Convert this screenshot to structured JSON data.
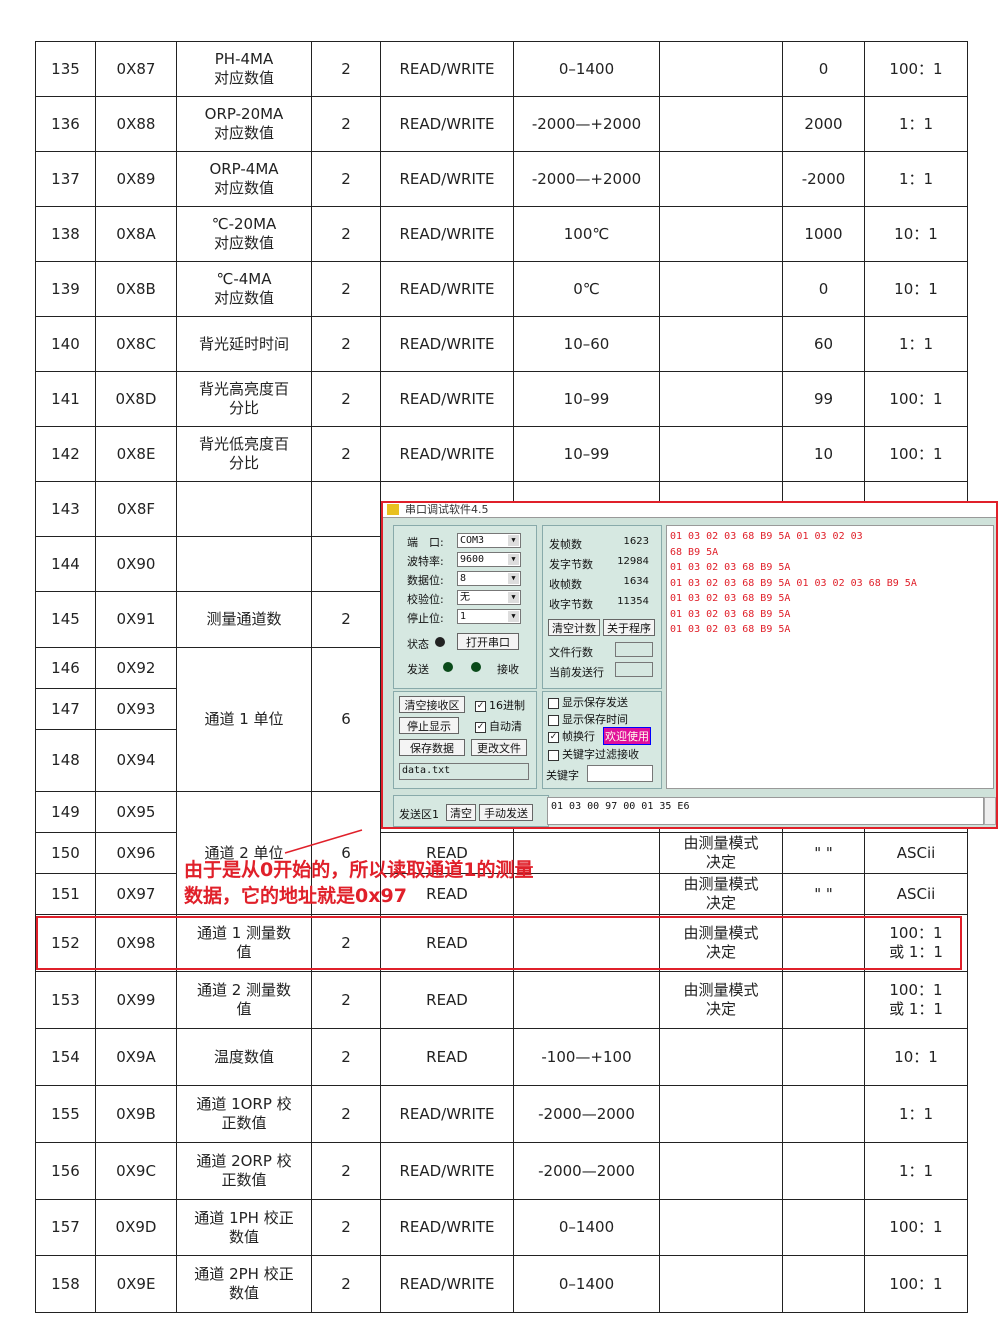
{
  "table": {
    "rows": [
      {
        "no": "135",
        "addr": "0X87",
        "name": "PH-4MA\n对应数值",
        "bytes": "2",
        "rw": "READ/WRITE",
        "range": "0–1400",
        "default": "0",
        "ratio": "100：1"
      },
      {
        "no": "136",
        "addr": "0X88",
        "name": "ORP-20MA\n对应数值",
        "bytes": "2",
        "rw": "READ/WRITE",
        "range": "-2000—+2000",
        "default": "2000",
        "ratio": "1：1"
      },
      {
        "no": "137",
        "addr": "0X89",
        "name": "ORP-4MA\n对应数值",
        "bytes": "2",
        "rw": "READ/WRITE",
        "range": "-2000—+2000",
        "default": "-2000",
        "ratio": "1：1"
      },
      {
        "no": "138",
        "addr": "0X8A",
        "name": "℃-20MA\n对应数值",
        "bytes": "2",
        "rw": "READ/WRITE",
        "range": "100℃",
        "default": "1000",
        "ratio": "10：1"
      },
      {
        "no": "139",
        "addr": "0X8B",
        "name": "℃-4MA\n对应数值",
        "bytes": "2",
        "rw": "READ/WRITE",
        "range": "0℃",
        "default": "0",
        "ratio": "10：1"
      },
      {
        "no": "140",
        "addr": "0X8C",
        "name": "背光延时时间",
        "bytes": "2",
        "rw": "READ/WRITE",
        "range": "10–60",
        "default": "60",
        "ratio": "1：1"
      },
      {
        "no": "141",
        "addr": "0X8D",
        "name": "背光高亮度百\n分比",
        "bytes": "2",
        "rw": "READ/WRITE",
        "range": "10–99",
        "default": "99",
        "ratio": "100：1"
      },
      {
        "no": "142",
        "addr": "0X8E",
        "name": "背光低亮度百\n分比",
        "bytes": "2",
        "rw": "READ/WRITE",
        "range": "10–99",
        "default": "10",
        "ratio": "100：1"
      },
      {
        "no": "143",
        "addr": "0X8F"
      },
      {
        "no": "144",
        "addr": "0X90"
      },
      {
        "no": "145",
        "addr": "0X91",
        "name": "测量通道数",
        "bytes": "2"
      },
      {
        "no": "146",
        "addr": "0X92",
        "name": "通道 1 单位",
        "bytes": "6"
      },
      {
        "no": "147",
        "addr": "0X93"
      },
      {
        "no": "148",
        "addr": "0X94"
      },
      {
        "no": "149",
        "addr": "0X95",
        "name": "通道 2 单位",
        "bytes": "6"
      },
      {
        "no": "150",
        "addr": "0X96",
        "rw": "READ",
        "mode": "由测量模式\n决定",
        "default": "\" \"",
        "ratio": "ASCii"
      },
      {
        "no": "151",
        "addr": "0X97",
        "rw": "READ",
        "mode": "由测量模式\n决定",
        "default": "\" \"",
        "ratio": "ASCii"
      },
      {
        "no": "152",
        "addr": "0X98",
        "name": "通道 1 测量数\n值",
        "bytes": "2",
        "rw": "READ",
        "mode": "由测量模式\n决定",
        "ratio": "100：1\n或 1：1"
      },
      {
        "no": "153",
        "addr": "0X99",
        "name": "通道 2 测量数\n值",
        "bytes": "2",
        "rw": "READ",
        "mode": "由测量模式\n决定",
        "ratio": "100：1\n或 1：1"
      },
      {
        "no": "154",
        "addr": "0X9A",
        "name": "温度数值",
        "bytes": "2",
        "rw": "READ",
        "range": "-100—+100",
        "ratio": "10：1"
      },
      {
        "no": "155",
        "addr": "0X9B",
        "name": "通道 1ORP 校\n正数值",
        "bytes": "2",
        "rw": "READ/WRITE",
        "range": "-2000—2000",
        "ratio": "1：1"
      },
      {
        "no": "156",
        "addr": "0X9C",
        "name": "通道 2ORP 校\n正数值",
        "bytes": "2",
        "rw": "READ/WRITE",
        "range": "-2000—2000",
        "ratio": "1：1"
      },
      {
        "no": "157",
        "addr": "0X9D",
        "name": "通道 1PH 校正\n数值",
        "bytes": "2",
        "rw": "READ/WRITE",
        "range": "0–1400",
        "ratio": "100：1"
      },
      {
        "no": "158",
        "addr": "0X9E",
        "name": "通道 2PH 校正\n数值",
        "bytes": "2",
        "rw": "READ/WRITE",
        "range": "0–1400",
        "ratio": "100：1"
      }
    ]
  },
  "annotation": "由于是从0开始的，所以读取通道1的测量\n数据，它的地址就是0x97",
  "window": {
    "title": "串口调试软件4.5",
    "settings": [
      {
        "label": "端　口:",
        "value": "COM3"
      },
      {
        "label": "波特率:",
        "value": "9600"
      },
      {
        "label": "数据位:",
        "value": "8"
      },
      {
        "label": "校验位:",
        "value": "无"
      },
      {
        "label": "停止位:",
        "value": "1"
      }
    ],
    "status": "状态",
    "open_port": "打开串口",
    "send": "发送",
    "receive": "接收",
    "counters": [
      {
        "label": "发帧数",
        "value": "1623"
      },
      {
        "label": "发字节数",
        "value": "12984"
      },
      {
        "label": "收帧数",
        "value": "1634"
      },
      {
        "label": "收字节数",
        "value": "11354"
      }
    ],
    "clear_count": "清空计数",
    "about": "关于程序",
    "file_lines": "文件行数",
    "current_line": "当前发送行",
    "receive_lines": [
      "01 03 02 03 68 B9 5A 01 03 02 03",
      "68 B9 5A",
      "01 03 02 03 68 B9 5A",
      "01 03 02 03 68 B9 5A 01 03 02 03 68 B9 5A",
      "01 03 02 03 68 B9 5A",
      "01 03 02 03 68 B9 5A",
      "01 03 02 03 68 B9 5A"
    ],
    "clear_receive": "清空接收区",
    "hex": "16进制",
    "stop_display": "停止显示",
    "auto_clear": "自动清",
    "save_data": "保存数据",
    "change_file": "更改文件",
    "file": "data.txt",
    "show_save_send": "显示保存发送",
    "show_save_time": "显示保存时间",
    "frame_newline": "帧换行",
    "welcome": "欢迎使用",
    "keyword_filter": "关键字过滤接收",
    "keyword": "关键字",
    "send_area": "发送区1",
    "clear": "清空",
    "manual_send": "手动发送",
    "send_text": "01 03 00 97 00 01 35 E6"
  }
}
